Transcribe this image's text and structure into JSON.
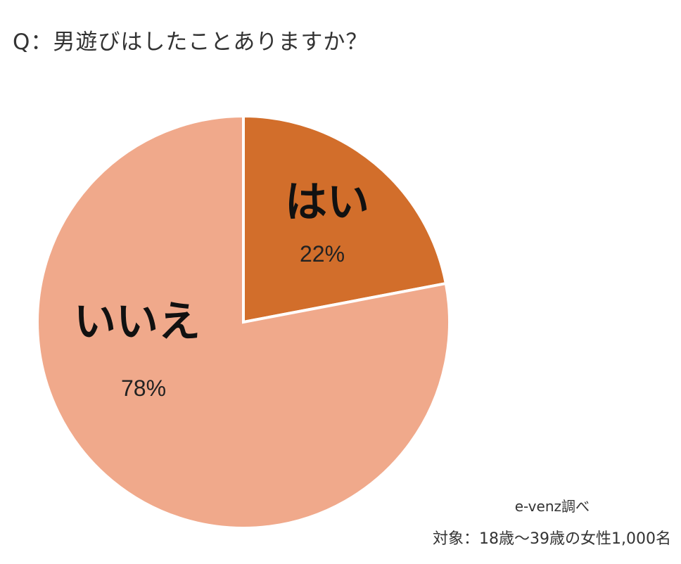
{
  "chart_data": {
    "type": "pie",
    "title": "Q：男遊びはしたことありますか？",
    "slices": [
      {
        "label": "はい",
        "value": 22,
        "value_label": "22%",
        "color": "#D26E2B"
      },
      {
        "label": "いいえ",
        "value": 78,
        "value_label": "78%",
        "color": "#F0A98B"
      }
    ],
    "start_angle": "12 o'clock",
    "direction": "clockwise",
    "slice_border_color": "#FFFFFF",
    "legend": "none (labels on slices)"
  },
  "source": {
    "line1": "e-venz調べ",
    "line2": "対象：18歳〜39歳の女性1,000名"
  }
}
